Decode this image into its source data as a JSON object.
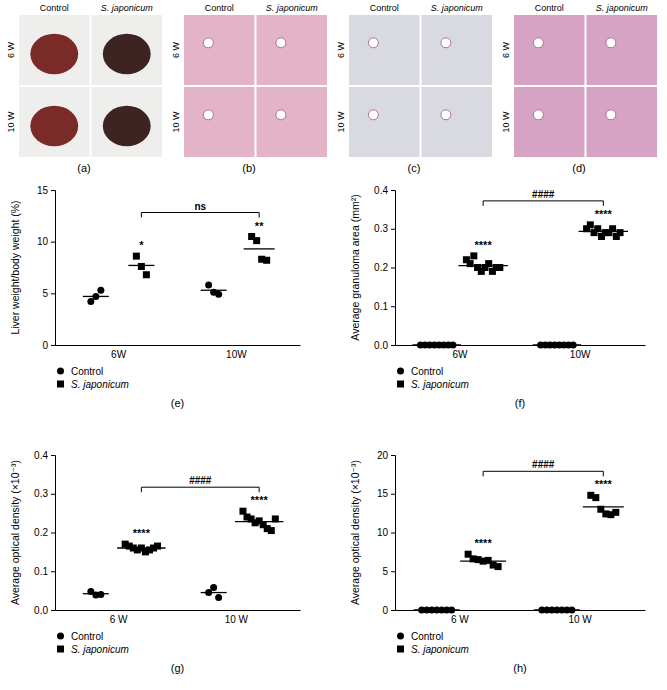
{
  "image_panels": [
    {
      "label": "(a)",
      "columns": [
        "Control",
        "S. japonicum"
      ],
      "rows": [
        "6 W",
        "10 W"
      ]
    },
    {
      "label": "(b)",
      "columns": [
        "Control",
        "S. japonicum"
      ],
      "rows": [
        "6 W",
        "10 W"
      ]
    },
    {
      "label": "(c)",
      "columns": [
        "Control",
        "S. japonicum"
      ],
      "rows": [
        "6 W",
        "10 W"
      ]
    },
    {
      "label": "(d)",
      "columns": [
        "Control",
        "S. japonicum"
      ],
      "rows": [
        "6 W",
        "10 W"
      ]
    }
  ],
  "chart_data": [
    {
      "type": "dot_plot",
      "title": "(e)",
      "y_label": "Liver weight/body weight (%)",
      "categories": [
        "6W",
        "10W"
      ],
      "ylim": [
        0,
        15
      ],
      "yticks": [
        0,
        5,
        10,
        15
      ],
      "legend": "bottom",
      "series": [
        {
          "name": "Control",
          "color": "#000000",
          "marker": "circle",
          "values": [
            [
              4.2,
              4.7,
              5.3
            ],
            [
              5.8,
              5.1,
              4.9
            ]
          ],
          "means": [
            4.7,
            5.3
          ]
        },
        {
          "name": "S. japonicum",
          "color": "#000000",
          "marker": "square",
          "values": [
            [
              8.6,
              7.6,
              6.8
            ],
            [
              10.5,
              10.1,
              8.3,
              8.2
            ]
          ],
          "means": [
            7.7,
            9.3
          ]
        }
      ],
      "annotations": [
        {
          "text": "*",
          "category": "6W",
          "series": "S. japonicum"
        },
        {
          "text": "**",
          "category": "10W",
          "series": "S. japonicum"
        }
      ],
      "comparisons": [
        {
          "text": "ns",
          "from": "6W",
          "to": "10W",
          "series": "S. japonicum"
        }
      ]
    },
    {
      "type": "dot_plot",
      "title": "(f)",
      "y_label": "Average granuloma area (mm²)",
      "categories": [
        "6W",
        "10W"
      ],
      "ylim": [
        0,
        0.4
      ],
      "yticks": [
        {
          "value": 0,
          "label": "0.0"
        },
        0.1,
        0.2,
        0.3,
        0.4
      ],
      "legend": "bottom",
      "series": [
        {
          "name": "Control",
          "color": "#000000",
          "marker": "circle",
          "values": [
            [
              0,
              0,
              0,
              0,
              0,
              0,
              0,
              0
            ],
            [
              0,
              0,
              0,
              0,
              0,
              0,
              0,
              0
            ]
          ],
          "means": [
            0,
            0
          ]
        },
        {
          "name": "S. japonicum",
          "color": "#000000",
          "marker": "square",
          "values": [
            [
              0.22,
              0.21,
              0.23,
              0.2,
              0.19,
              0.2,
              0.21,
              0.19,
              0.2,
              0.2
            ],
            [
              0.3,
              0.31,
              0.29,
              0.3,
              0.28,
              0.29,
              0.29,
              0.3,
              0.28,
              0.29
            ]
          ],
          "means": [
            0.205,
            0.293
          ]
        }
      ],
      "annotations": [
        {
          "text": "****",
          "category": "6W",
          "series": "S. japonicum"
        },
        {
          "text": "****",
          "category": "10W",
          "series": "S. japonicum"
        }
      ],
      "comparisons": [
        {
          "text": "####",
          "from": "6W",
          "to": "10W",
          "series": "S. japonicum"
        }
      ]
    },
    {
      "type": "dot_plot",
      "title": "(g)",
      "y_label": "Average optical density (×10⁻³)",
      "categories": [
        "6 W",
        "10 W"
      ],
      "ylim": [
        0,
        0.4
      ],
      "yticks": [
        {
          "value": 0,
          "label": "0.0"
        },
        0.1,
        0.2,
        0.3,
        0.4
      ],
      "legend": "bottom",
      "series": [
        {
          "name": "Control",
          "color": "#000000",
          "marker": "circle",
          "values": [
            [
              0.048,
              0.039,
              0.04
            ],
            [
              0.045,
              0.058,
              0.032
            ]
          ],
          "means": [
            0.042,
            0.045
          ]
        },
        {
          "name": "S. japonicum",
          "color": "#000000",
          "marker": "square",
          "values": [
            [
              0.17,
              0.165,
              0.16,
              0.155,
              0.16,
              0.15,
              0.155,
              0.16,
              0.165
            ],
            [
              0.255,
              0.24,
              0.235,
              0.225,
              0.23,
              0.22,
              0.21,
              0.205,
              0.235
            ]
          ],
          "means": [
            0.16,
            0.228
          ]
        }
      ],
      "annotations": [
        {
          "text": "****",
          "category": "6 W",
          "series": "S. japonicum"
        },
        {
          "text": "****",
          "category": "10 W",
          "series": "S. japonicum"
        }
      ],
      "comparisons": [
        {
          "text": "####",
          "from": "6 W",
          "to": "10 W",
          "series": "S. japonicum"
        }
      ]
    },
    {
      "type": "dot_plot",
      "title": "(h)",
      "y_label": "Average optical density (×10⁻³)",
      "categories": [
        "6 W",
        "10 W"
      ],
      "ylim": [
        0,
        20
      ],
      "yticks": [
        0,
        5,
        10,
        15,
        20
      ],
      "legend": "bottom",
      "series": [
        {
          "name": "Control",
          "color": "#000000",
          "marker": "circle",
          "values": [
            [
              0,
              0,
              0,
              0,
              0,
              0,
              0
            ],
            [
              0,
              0,
              0,
              0,
              0,
              0,
              0
            ]
          ],
          "means": [
            0,
            0
          ]
        },
        {
          "name": "S. japonicum",
          "color": "#000000",
          "marker": "square",
          "values": [
            [
              7.2,
              6.6,
              6.5,
              6.3,
              6.4,
              5.8,
              5.6
            ],
            [
              14.8,
              14.5,
              13.0,
              12.4,
              12.3,
              12.6
            ]
          ],
          "means": [
            6.3,
            13.3
          ]
        }
      ],
      "annotations": [
        {
          "text": "****",
          "category": "6 W",
          "series": "S. japonicum"
        },
        {
          "text": "****",
          "category": "10 W",
          "series": "S. japonicum"
        }
      ],
      "comparisons": [
        {
          "text": "####",
          "from": "6 W",
          "to": "10 W",
          "series": "S. japonicum"
        }
      ]
    }
  ]
}
